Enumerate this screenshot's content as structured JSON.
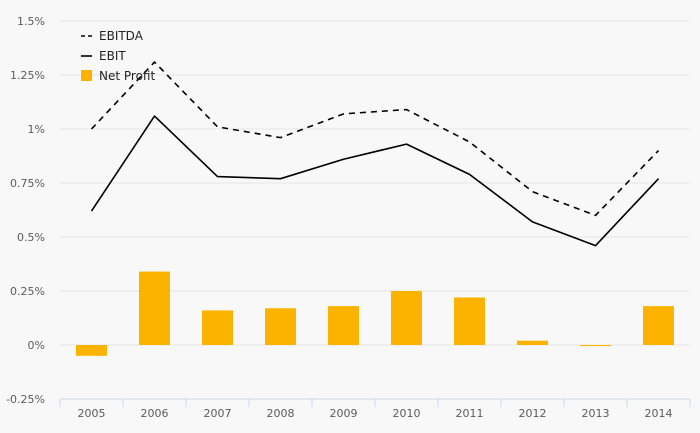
{
  "chart_data": {
    "type": "bar",
    "categories": [
      "2005",
      "2006",
      "2007",
      "2008",
      "2009",
      "2010",
      "2011",
      "2012",
      "2013",
      "2014"
    ],
    "series": [
      {
        "name": "EBITDA",
        "kind": "line",
        "style": "dashed",
        "color": "#000000",
        "values": [
          1.0,
          1.31,
          1.01,
          0.96,
          1.07,
          1.09,
          0.94,
          0.71,
          0.6,
          0.9
        ]
      },
      {
        "name": "EBIT",
        "kind": "line",
        "style": "solid",
        "color": "#000000",
        "values": [
          0.62,
          1.06,
          0.78,
          0.77,
          0.86,
          0.93,
          0.79,
          0.57,
          0.46,
          0.77
        ]
      },
      {
        "name": "Net Profit",
        "kind": "bar",
        "color": "#fbb300",
        "values": [
          -0.05,
          0.34,
          0.16,
          0.17,
          0.18,
          0.25,
          0.22,
          0.02,
          -0.005,
          0.18
        ]
      }
    ],
    "ylim": [
      -0.25,
      1.5
    ],
    "yticks": [
      1.5,
      1.25,
      1.0,
      0.75,
      0.5,
      0.25,
      0.0,
      -0.25
    ],
    "ytick_labels": [
      "1.5%",
      "1.25%",
      "1%",
      "0.75%",
      "0.5%",
      "0.25%",
      "0%",
      "-0.25%"
    ],
    "legend": {
      "position": "top-left",
      "entries": [
        "EBITDA",
        "EBIT",
        "Net Profit"
      ]
    },
    "grid": true,
    "title": "",
    "xlabel": "",
    "ylabel": ""
  }
}
